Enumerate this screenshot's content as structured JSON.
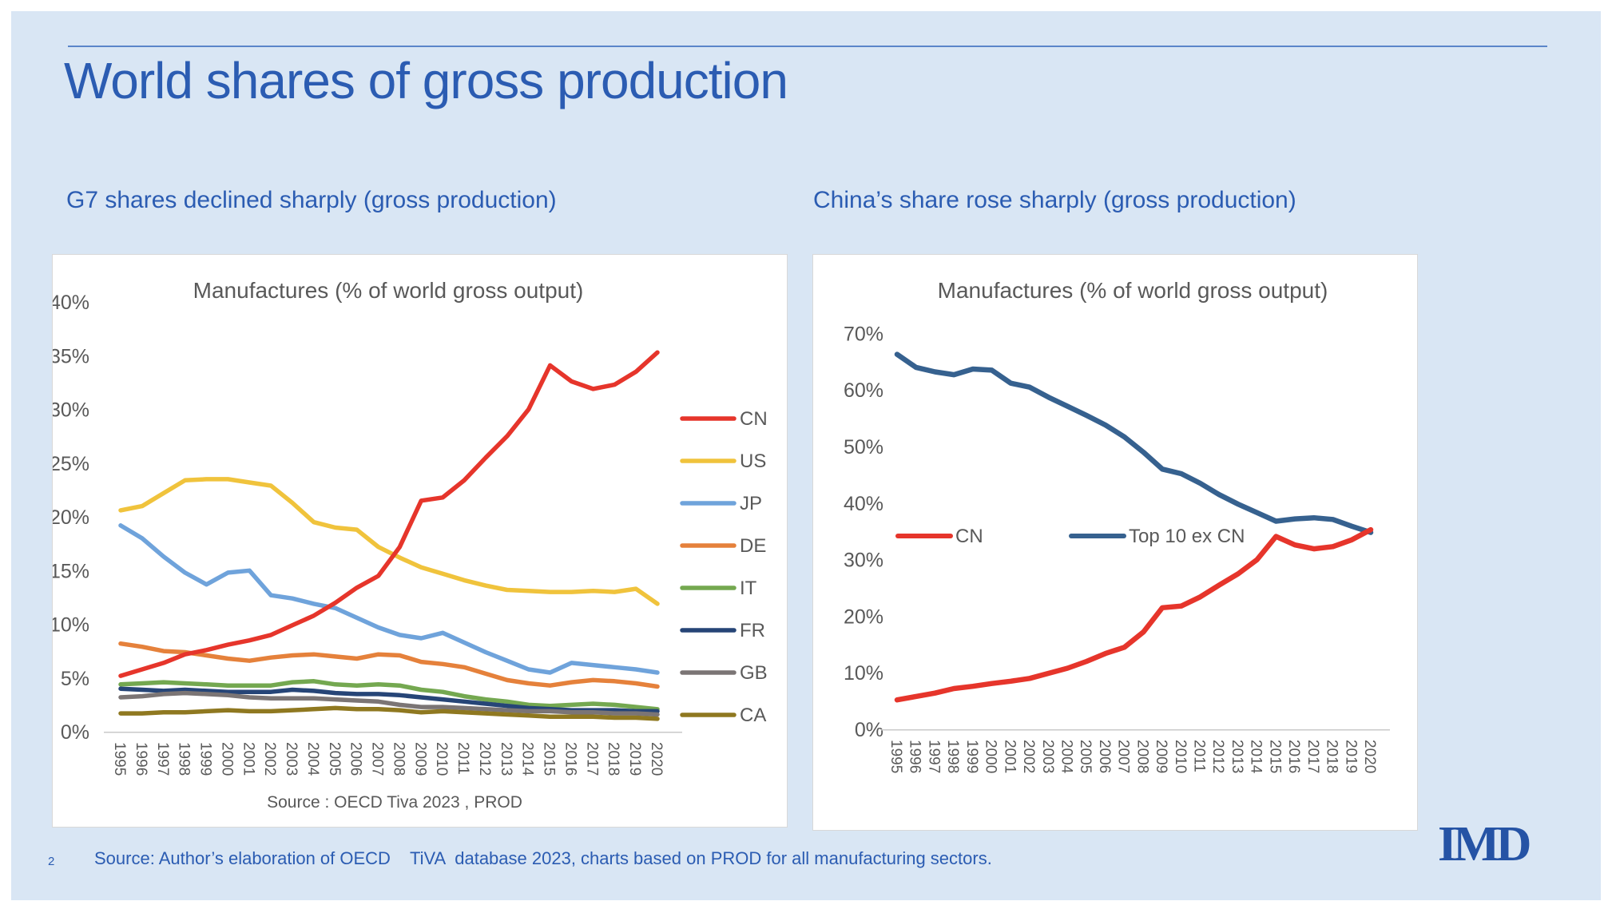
{
  "slide": {
    "title": "World shares of gross production",
    "subtitle_left": "G7 shares declined sharply (gross production)",
    "subtitle_right": "China’s share rose sharply (gross production)",
    "footer_source": "Source: Author’s elaboration of OECD    TiVA  database 2023, charts based on PROD for all manufacturing sectors.",
    "page_number": "2",
    "logo_text": "IMD",
    "colors": {
      "background": "#D9E6F4",
      "accent_blue": "#2B5CB2",
      "rule_blue": "#5B86C9",
      "text_gray": "#595959",
      "panel_border": "#D8D8D8",
      "axis_line": "#C9C9C9",
      "logo_blue": "#2553A5"
    }
  },
  "chart_data": [
    {
      "id": "g7",
      "type": "line",
      "title": "Manufactures (% of world gross output)",
      "source_note": "Source : OECD Tiva 2023 , PROD",
      "x": [
        1995,
        1996,
        1997,
        1998,
        1999,
        2000,
        2001,
        2002,
        2003,
        2004,
        2005,
        2006,
        2007,
        2008,
        2009,
        2010,
        2011,
        2012,
        2013,
        2014,
        2015,
        2016,
        2017,
        2018,
        2019,
        2020
      ],
      "ylim": [
        0,
        40
      ],
      "ytick_step": 5,
      "ytick_suffix": "%",
      "grid": false,
      "legend_position": "right-column",
      "series": [
        {
          "name": "CN",
          "color": "#E6352B",
          "values": [
            5.2,
            5.8,
            6.4,
            7.2,
            7.6,
            8.1,
            8.5,
            9.0,
            9.9,
            10.8,
            12.0,
            13.4,
            14.5,
            17.2,
            21.5,
            21.8,
            23.4,
            25.5,
            27.5,
            30.0,
            34.1,
            32.6,
            31.9,
            32.3,
            33.5,
            35.3
          ]
        },
        {
          "name": "US",
          "color": "#F0C33C",
          "values": [
            20.6,
            21.0,
            22.2,
            23.4,
            23.5,
            23.5,
            23.2,
            22.9,
            21.3,
            19.5,
            19.0,
            18.8,
            17.2,
            16.2,
            15.3,
            14.7,
            14.1,
            13.6,
            13.2,
            13.1,
            13.0,
            13.0,
            13.1,
            13.0,
            13.3,
            11.9
          ]
        },
        {
          "name": "JP",
          "color": "#6FA3DB",
          "values": [
            19.2,
            18.0,
            16.3,
            14.8,
            13.7,
            14.8,
            15.0,
            12.7,
            12.4,
            11.9,
            11.5,
            10.6,
            9.7,
            9.0,
            8.7,
            9.2,
            8.3,
            7.4,
            6.6,
            5.8,
            5.5,
            6.4,
            6.2,
            6.0,
            5.8,
            5.5
          ]
        },
        {
          "name": "DE",
          "color": "#E5813B",
          "values": [
            8.2,
            7.9,
            7.5,
            7.4,
            7.1,
            6.8,
            6.6,
            6.9,
            7.1,
            7.2,
            7.0,
            6.8,
            7.2,
            7.1,
            6.5,
            6.3,
            6.0,
            5.4,
            4.8,
            4.5,
            4.3,
            4.6,
            4.8,
            4.7,
            4.5,
            4.2
          ]
        },
        {
          "name": "IT",
          "color": "#74A850",
          "values": [
            4.4,
            4.5,
            4.6,
            4.5,
            4.4,
            4.3,
            4.3,
            4.3,
            4.6,
            4.7,
            4.4,
            4.3,
            4.4,
            4.3,
            3.9,
            3.7,
            3.3,
            3.0,
            2.8,
            2.5,
            2.4,
            2.5,
            2.6,
            2.5,
            2.3,
            2.1
          ]
        },
        {
          "name": "FR",
          "color": "#264577",
          "values": [
            4.0,
            3.9,
            3.8,
            3.9,
            3.8,
            3.7,
            3.7,
            3.7,
            3.9,
            3.8,
            3.6,
            3.5,
            3.5,
            3.4,
            3.2,
            3.0,
            2.8,
            2.6,
            2.4,
            2.2,
            2.1,
            2.0,
            2.0,
            2.0,
            1.9,
            1.9
          ]
        },
        {
          "name": "GB",
          "color": "#7B7575",
          "values": [
            3.2,
            3.3,
            3.5,
            3.6,
            3.5,
            3.4,
            3.2,
            3.1,
            3.1,
            3.1,
            3.0,
            2.9,
            2.8,
            2.5,
            2.3,
            2.3,
            2.2,
            2.1,
            2.0,
            1.9,
            1.9,
            1.8,
            1.8,
            1.7,
            1.7,
            1.6
          ]
        },
        {
          "name": "CA",
          "color": "#8F7820",
          "values": [
            1.7,
            1.7,
            1.8,
            1.8,
            1.9,
            2.0,
            1.9,
            1.9,
            2.0,
            2.1,
            2.2,
            2.1,
            2.1,
            2.0,
            1.8,
            1.9,
            1.8,
            1.7,
            1.6,
            1.5,
            1.4,
            1.4,
            1.4,
            1.3,
            1.3,
            1.2
          ]
        }
      ]
    },
    {
      "id": "china",
      "type": "line",
      "title": "Manufactures (% of world gross output)",
      "source_note": "",
      "x": [
        1995,
        1996,
        1997,
        1998,
        1999,
        2000,
        2001,
        2002,
        2003,
        2004,
        2005,
        2006,
        2007,
        2008,
        2009,
        2010,
        2011,
        2012,
        2013,
        2014,
        2015,
        2016,
        2017,
        2018,
        2019,
        2020
      ],
      "ylim": [
        0,
        70
      ],
      "ytick_step": 10,
      "ytick_suffix": "%",
      "grid": false,
      "legend_position": "inside-row",
      "series": [
        {
          "name": "CN",
          "color": "#E6352B",
          "values": [
            5.2,
            5.8,
            6.4,
            7.2,
            7.6,
            8.1,
            8.5,
            9.0,
            9.9,
            10.8,
            12.0,
            13.4,
            14.5,
            17.2,
            21.5,
            21.8,
            23.4,
            25.5,
            27.5,
            30.0,
            34.1,
            32.6,
            31.9,
            32.3,
            33.5,
            35.3
          ]
        },
        {
          "name": "Top 10 ex CN",
          "color": "#36618F",
          "values": [
            66.3,
            64.0,
            63.2,
            62.7,
            63.7,
            63.5,
            61.2,
            60.5,
            58.7,
            57.1,
            55.5,
            53.8,
            51.7,
            49.0,
            46.0,
            45.2,
            43.5,
            41.5,
            39.8,
            38.3,
            36.8,
            37.2,
            37.4,
            37.1,
            35.9,
            34.8
          ]
        }
      ]
    }
  ]
}
